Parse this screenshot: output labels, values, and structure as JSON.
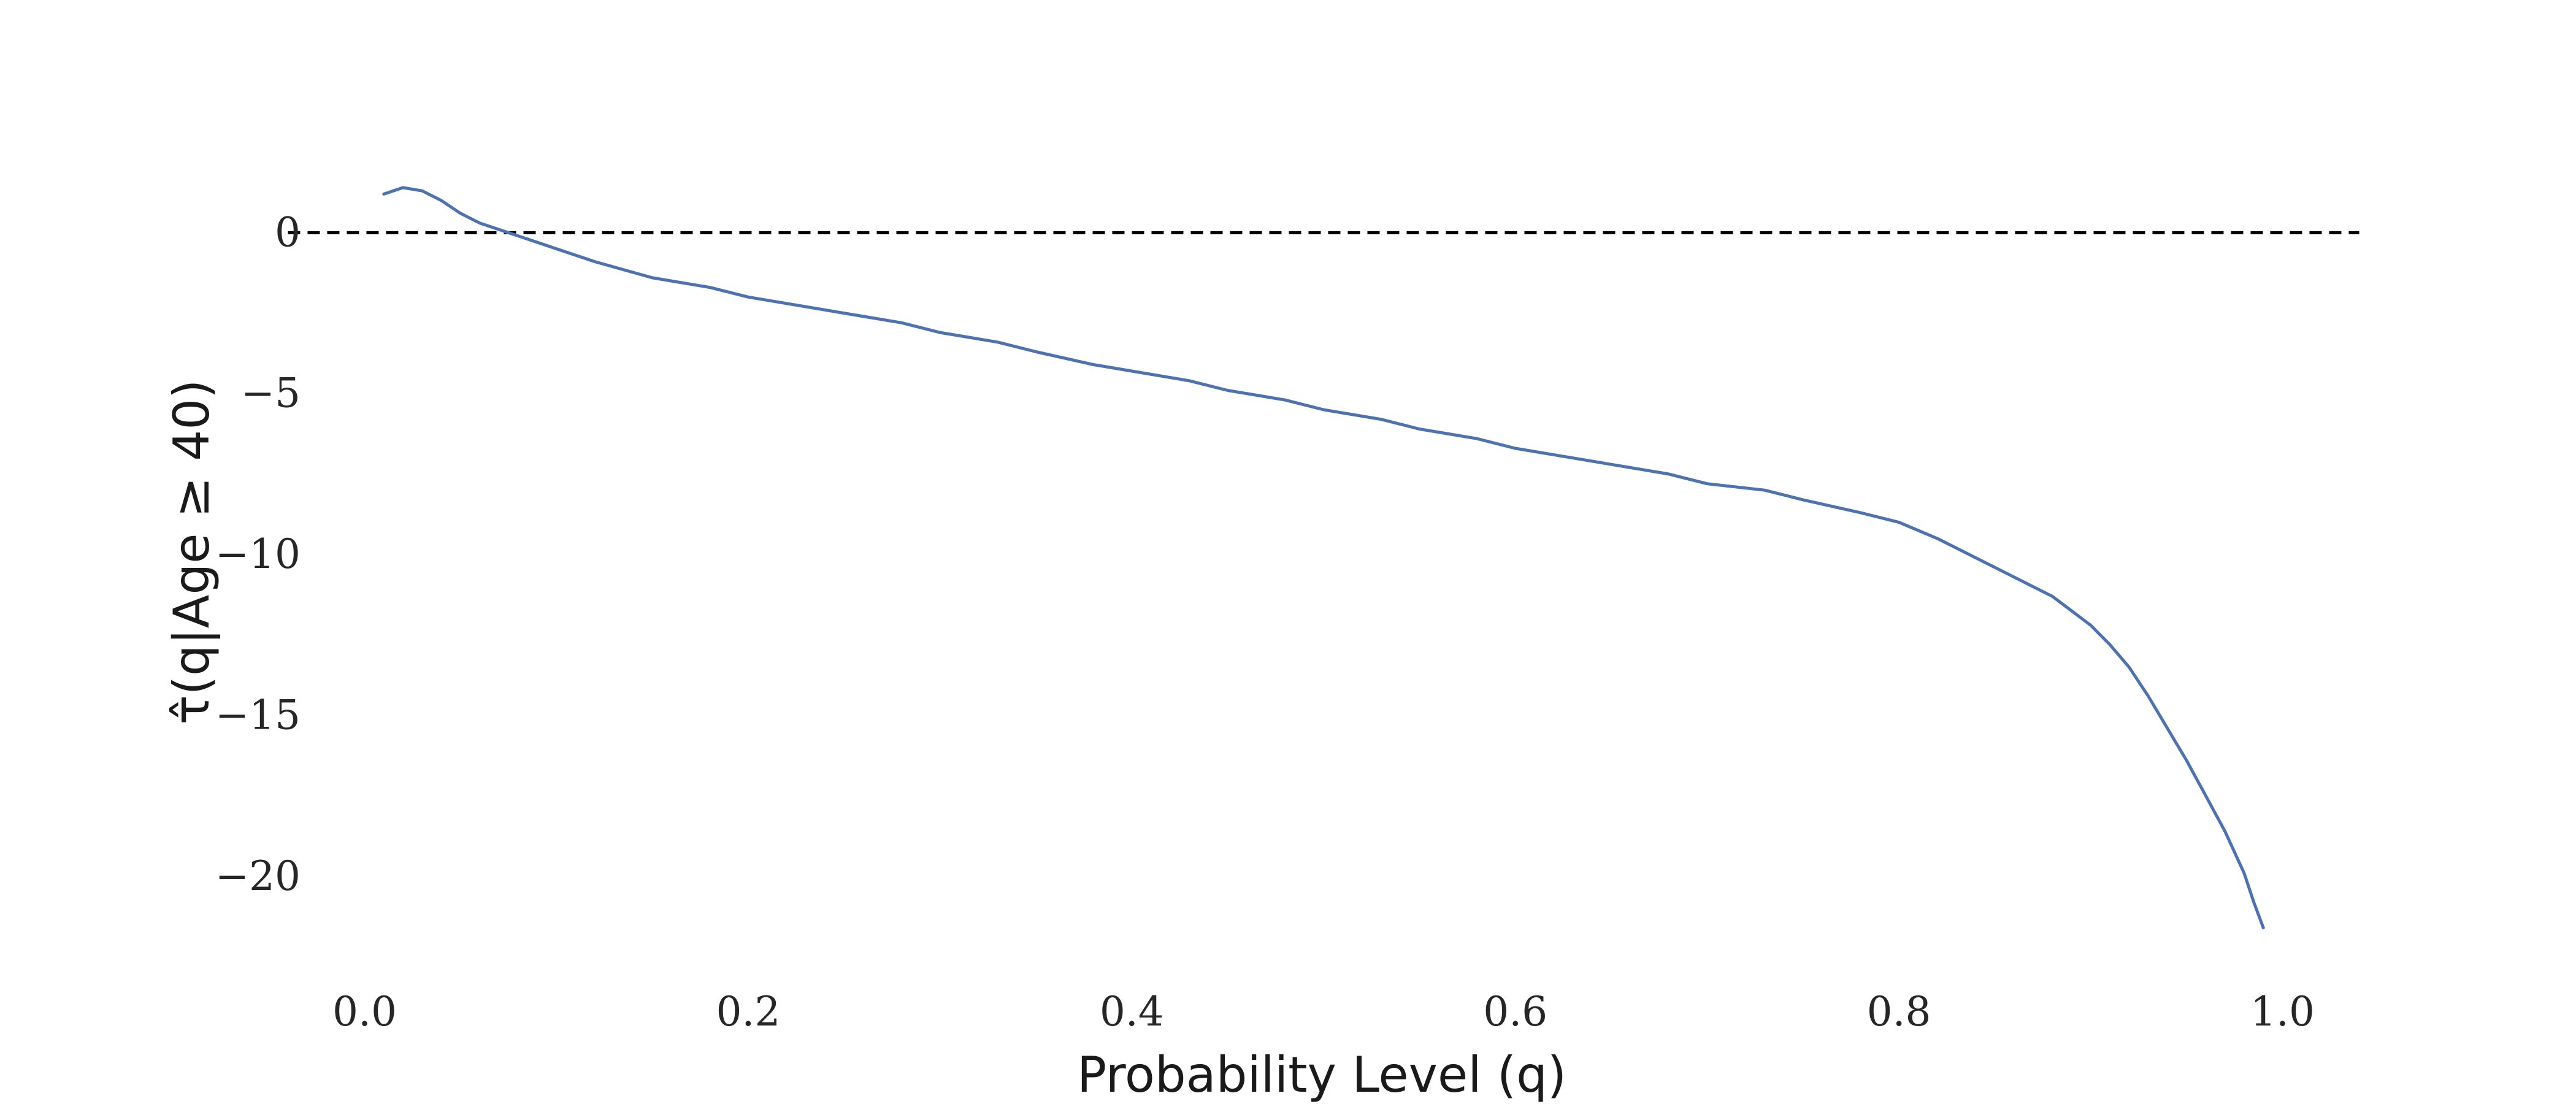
{
  "chart_data": {
    "type": "line",
    "xlabel": "Probability Level (q)",
    "ylabel": "τ̂(q|Age ≥ 40)",
    "xlim": [
      -0.02,
      1.02
    ],
    "ylim": [
      -22.5,
      3.8
    ],
    "grid": false,
    "legend": "none",
    "x_ticks": [
      0.0,
      0.2,
      0.4,
      0.6,
      0.8,
      1.0
    ],
    "x_tick_labels": [
      "0.0",
      "0.2",
      "0.4",
      "0.6",
      "0.8",
      "1.0"
    ],
    "y_ticks": [
      0,
      -5,
      -10,
      -15,
      -20
    ],
    "y_tick_labels": [
      "0",
      "−5",
      "−10",
      "−15",
      "−20"
    ],
    "reference_line": {
      "y": 0,
      "x_range": [
        -0.04,
        1.04
      ],
      "style": "dashed",
      "color": "#000000"
    },
    "series": [
      {
        "color": "#4c72b0",
        "x": [
          0.01,
          0.02,
          0.03,
          0.04,
          0.05,
          0.06,
          0.07,
          0.08,
          0.09,
          0.1,
          0.12,
          0.15,
          0.18,
          0.2,
          0.22,
          0.25,
          0.28,
          0.3,
          0.33,
          0.35,
          0.38,
          0.4,
          0.43,
          0.45,
          0.48,
          0.5,
          0.53,
          0.55,
          0.58,
          0.6,
          0.63,
          0.65,
          0.68,
          0.7,
          0.73,
          0.75,
          0.78,
          0.8,
          0.82,
          0.84,
          0.86,
          0.88,
          0.9,
          0.91,
          0.92,
          0.93,
          0.94,
          0.95,
          0.96,
          0.97,
          0.98,
          0.985,
          0.99
        ],
        "y": [
          1.2,
          1.4,
          1.3,
          1.0,
          0.6,
          0.3,
          0.1,
          -0.1,
          -0.3,
          -0.5,
          -0.9,
          -1.4,
          -1.7,
          -2.0,
          -2.2,
          -2.5,
          -2.8,
          -3.1,
          -3.4,
          -3.7,
          -4.1,
          -4.3,
          -4.6,
          -4.9,
          -5.2,
          -5.5,
          -5.8,
          -6.1,
          -6.4,
          -6.7,
          -7.0,
          -7.2,
          -7.5,
          -7.8,
          -8.0,
          -8.3,
          -8.7,
          -9.0,
          -9.5,
          -10.1,
          -10.7,
          -11.3,
          -12.2,
          -12.8,
          -13.5,
          -14.4,
          -15.4,
          -16.4,
          -17.5,
          -18.6,
          -19.9,
          -20.8,
          -21.6
        ]
      }
    ]
  }
}
